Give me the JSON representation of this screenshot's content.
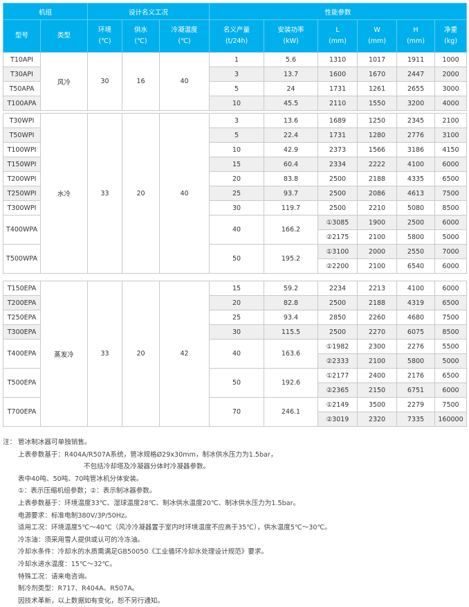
{
  "colors": {
    "header": "#00b0ec",
    "alt_row": "#efefef",
    "border": "#c9c9c9"
  },
  "header": {
    "group1": "机组",
    "group2": "设计名义工况",
    "group3": "性能参数",
    "cols": [
      [
        "型号",
        ""
      ],
      [
        "类型",
        ""
      ],
      [
        "环境",
        "(℃)"
      ],
      [
        "供水",
        "(℃)"
      ],
      [
        "冷凝温度",
        "(℃)"
      ],
      [
        "名义产量",
        "(t/24h)"
      ],
      [
        "安装功率",
        "(kW)"
      ],
      [
        "L",
        "(mm)"
      ],
      [
        "W",
        "(mm)"
      ],
      [
        "H",
        "(mm)"
      ],
      [
        "净重",
        "(kg)"
      ]
    ]
  },
  "sections": [
    {
      "type": "风冷",
      "ambient": "30",
      "supply": "16",
      "condensing": "40",
      "rows": [
        {
          "model": "T10API",
          "capacity": "1",
          "power": "5.6",
          "sub": [
            [
              "1310",
              "1017",
              "1911",
              "1000"
            ]
          ]
        },
        {
          "model": "T30API",
          "capacity": "3",
          "power": "13.7",
          "sub": [
            [
              "1600",
              "1670",
              "2447",
              "2000"
            ]
          ]
        },
        {
          "model": "T50APA",
          "capacity": "5",
          "power": "24",
          "sub": [
            [
              "1731",
              "1261",
              "2655",
              "3000"
            ]
          ]
        },
        {
          "model": "T100APA",
          "capacity": "10",
          "power": "45.5",
          "sub": [
            [
              "2110",
              "1550",
              "3200",
              "4000"
            ]
          ]
        }
      ]
    },
    {
      "type": "水冷",
      "ambient": "33",
      "supply": "20",
      "condensing": "40",
      "rows": [
        {
          "model": "T30WPI",
          "capacity": "3",
          "power": "13.6",
          "sub": [
            [
              "1689",
              "1250",
              "2345",
              "2100"
            ]
          ]
        },
        {
          "model": "T50WPI",
          "capacity": "5",
          "power": "22.4",
          "sub": [
            [
              "1731",
              "1280",
              "2776",
              "3100"
            ]
          ]
        },
        {
          "model": "T100WPI",
          "capacity": "10",
          "power": "42.9",
          "sub": [
            [
              "2373",
              "1566",
              "3186",
              "4150"
            ]
          ]
        },
        {
          "model": "T150WPI",
          "capacity": "15",
          "power": "60.4",
          "sub": [
            [
              "2334",
              "2222",
              "4100",
              "6000"
            ]
          ]
        },
        {
          "model": "T200WPI",
          "capacity": "20",
          "power": "83.8",
          "sub": [
            [
              "2500",
              "2188",
              "4335",
              "6500"
            ]
          ]
        },
        {
          "model": "T250WPI",
          "capacity": "25",
          "power": "93.7",
          "sub": [
            [
              "2500",
              "2086",
              "4613",
              "7500"
            ]
          ]
        },
        {
          "model": "T300WPI",
          "capacity": "30",
          "power": "119.7",
          "sub": [
            [
              "2500",
              "2210",
              "5080",
              "8500"
            ]
          ]
        },
        {
          "model": "T400WPA",
          "capacity": "40",
          "power": "166.2",
          "sub": [
            [
              "①3085",
              "1900",
              "2500",
              "6000"
            ],
            [
              "②2175",
              "2100",
              "5800",
              "5000"
            ]
          ]
        },
        {
          "model": "T500WPA",
          "capacity": "50",
          "power": "195.2",
          "sub": [
            [
              "①3100",
              "2000",
              "2550",
              "7000"
            ],
            [
              "②2200",
              "2100",
              "6540",
              "6000"
            ]
          ]
        }
      ]
    },
    {
      "type": "蒸发冷",
      "ambient": "33",
      "supply": "20",
      "condensing": "42",
      "rows": [
        {
          "model": "T150EPA",
          "capacity": "15",
          "power": "59.2",
          "sub": [
            [
              "2234",
              "2213",
              "4100",
              "6000"
            ]
          ]
        },
        {
          "model": "T200EPA",
          "capacity": "20",
          "power": "82.8",
          "sub": [
            [
              "2500",
              "2188",
              "4319",
              "6500"
            ]
          ]
        },
        {
          "model": "T250EPA",
          "capacity": "25",
          "power": "93.4",
          "sub": [
            [
              "2850",
              "2260",
              "4680",
              "7500"
            ]
          ]
        },
        {
          "model": "T300EPA",
          "capacity": "30",
          "power": "115.5",
          "sub": [
            [
              "2500",
              "2270",
              "6075",
              "8500"
            ]
          ]
        },
        {
          "model": "T400EPA",
          "capacity": "40",
          "power": "163.6",
          "sub": [
            [
              "①1982",
              "2300",
              "2276",
              "5500"
            ],
            [
              "②2333",
              "2100",
              "5800",
              "5000"
            ]
          ]
        },
        {
          "model": "T500EPA",
          "capacity": "50",
          "power": "192.6",
          "sub": [
            [
              "①2177",
              "2400",
              "2176",
              "6500"
            ],
            [
              "②2365",
              "2150",
              "6751",
              "6000"
            ]
          ]
        },
        {
          "model": "T700EPA",
          "capacity": "70",
          "power": "246.1",
          "sub": [
            [
              "①2149",
              "3500",
              "2279",
              "7500"
            ],
            [
              "②3019",
              "2320",
              "7335",
              "160000"
            ]
          ]
        }
      ]
    }
  ],
  "notes": {
    "label": "注：",
    "lines": [
      "管冰制冰器可单独销售。",
      "上表参数基于：R404A/R507A系统，管冰规格Ø29x30mm，制冰供水压力为1.5bar，",
      "不包括冷却塔及冷凝器分体时冷凝器参数。",
      "表中40吨、50吨、70吨管冰机分体安装。",
      "①：表示压缩机组参数；②：表示制冰器参数。",
      "上表参数基于：环境温度33℃、湿球温度28℃、制冰供水温度20℃、制冰供水压力为1.5bar。",
      "电源要求：标准电制380V/3P/50Hz。",
      "适用工况：环境温度5℃～40℃（风冷冷凝器置于室内时环境温度不应高于35℃），供水温度5℃～30℃。",
      "冷冻油：须采用雪人提供或认可的冷冻油。",
      "冷却水条件：冷却水的水质需满足GB50050《工业循环冷却水处理设计规范》要求。",
      "冷却水进水温度：15℃～32℃。",
      "特殊工况：请来电咨询。",
      "制冷剂类型：R717、R404A、R507A。",
      "因技术革新，以上数据如有变化，恕不另行通知。"
    ]
  }
}
